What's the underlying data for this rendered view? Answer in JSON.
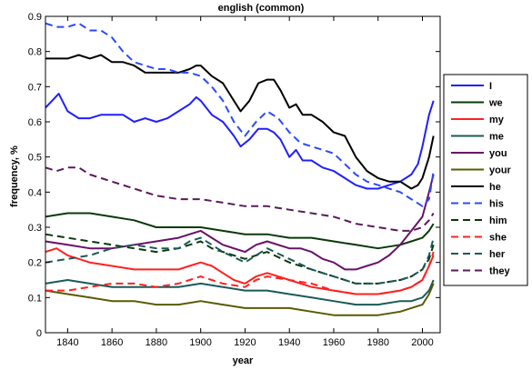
{
  "chart_data": {
    "type": "line",
    "title": "english (common)",
    "xlabel": "year",
    "ylabel": "frequency, %",
    "xlim": [
      1830,
      2008
    ],
    "ylim": [
      0,
      0.9
    ],
    "xticks": [
      1840,
      1860,
      1880,
      1900,
      1920,
      1940,
      1960,
      1980,
      2000
    ],
    "xtick_labels": [
      "1840",
      "1860",
      "1880",
      "1900",
      "1920",
      "1940",
      "1960",
      "1980",
      "2000"
    ],
    "yticks": [
      0,
      0.1,
      0.2,
      0.3,
      0.4,
      0.5,
      0.6,
      0.7,
      0.8,
      0.9
    ],
    "ytick_labels": [
      "0",
      "0.1",
      "0.2",
      "0.3",
      "0.4",
      "0.5",
      "0.6",
      "0.7",
      "0.8",
      "0.9"
    ],
    "grid": false,
    "legend_position": "right",
    "series": [
      {
        "name": "I",
        "color": "#1f1fff",
        "dash": "solid",
        "x": [
          1830,
          1833,
          1836,
          1840,
          1845,
          1850,
          1855,
          1860,
          1865,
          1870,
          1875,
          1880,
          1885,
          1890,
          1895,
          1898,
          1900,
          1905,
          1910,
          1915,
          1918,
          1922,
          1926,
          1930,
          1933,
          1936,
          1940,
          1943,
          1946,
          1950,
          1955,
          1960,
          1965,
          1970,
          1975,
          1980,
          1985,
          1990,
          1995,
          1998,
          2000,
          2003,
          2005
        ],
        "y": [
          0.64,
          0.66,
          0.68,
          0.63,
          0.61,
          0.61,
          0.62,
          0.62,
          0.62,
          0.6,
          0.61,
          0.6,
          0.61,
          0.63,
          0.65,
          0.67,
          0.66,
          0.62,
          0.6,
          0.56,
          0.53,
          0.55,
          0.58,
          0.58,
          0.57,
          0.55,
          0.5,
          0.52,
          0.49,
          0.49,
          0.47,
          0.46,
          0.44,
          0.42,
          0.41,
          0.41,
          0.42,
          0.43,
          0.45,
          0.48,
          0.53,
          0.62,
          0.66
        ]
      },
      {
        "name": "we",
        "color": "#0a3a0a",
        "dash": "solid",
        "x": [
          1830,
          1840,
          1850,
          1860,
          1870,
          1880,
          1890,
          1900,
          1910,
          1920,
          1930,
          1940,
          1950,
          1960,
          1970,
          1980,
          1990,
          1995,
          2000,
          2003,
          2005
        ],
        "y": [
          0.33,
          0.34,
          0.34,
          0.33,
          0.32,
          0.3,
          0.3,
          0.3,
          0.29,
          0.28,
          0.28,
          0.27,
          0.27,
          0.26,
          0.25,
          0.24,
          0.25,
          0.26,
          0.27,
          0.29,
          0.31
        ]
      },
      {
        "name": "my",
        "color": "#ff2020",
        "dash": "solid",
        "x": [
          1830,
          1835,
          1840,
          1850,
          1860,
          1870,
          1880,
          1890,
          1895,
          1900,
          1905,
          1910,
          1915,
          1920,
          1925,
          1930,
          1935,
          1940,
          1950,
          1960,
          1970,
          1980,
          1990,
          1995,
          2000,
          2003,
          2005
        ],
        "y": [
          0.23,
          0.24,
          0.22,
          0.2,
          0.19,
          0.18,
          0.18,
          0.18,
          0.19,
          0.2,
          0.19,
          0.17,
          0.15,
          0.14,
          0.16,
          0.17,
          0.16,
          0.15,
          0.13,
          0.12,
          0.11,
          0.11,
          0.12,
          0.13,
          0.15,
          0.19,
          0.22
        ]
      },
      {
        "name": "me",
        "color": "#1a5a5a",
        "dash": "solid",
        "x": [
          1830,
          1840,
          1850,
          1860,
          1870,
          1880,
          1890,
          1900,
          1910,
          1920,
          1930,
          1940,
          1950,
          1960,
          1970,
          1980,
          1990,
          1995,
          2000,
          2003,
          2005
        ],
        "y": [
          0.14,
          0.15,
          0.14,
          0.13,
          0.13,
          0.13,
          0.13,
          0.14,
          0.13,
          0.12,
          0.12,
          0.11,
          0.1,
          0.09,
          0.08,
          0.08,
          0.09,
          0.09,
          0.1,
          0.12,
          0.15
        ]
      },
      {
        "name": "you",
        "color": "#6a106a",
        "dash": "solid",
        "x": [
          1830,
          1840,
          1850,
          1860,
          1870,
          1880,
          1890,
          1895,
          1900,
          1905,
          1910,
          1920,
          1925,
          1930,
          1940,
          1945,
          1950,
          1955,
          1960,
          1965,
          1970,
          1975,
          1980,
          1985,
          1990,
          1995,
          2000,
          2003,
          2005
        ],
        "y": [
          0.26,
          0.25,
          0.24,
          0.24,
          0.25,
          0.26,
          0.27,
          0.28,
          0.29,
          0.27,
          0.25,
          0.23,
          0.25,
          0.26,
          0.24,
          0.24,
          0.23,
          0.21,
          0.2,
          0.18,
          0.18,
          0.19,
          0.2,
          0.22,
          0.25,
          0.29,
          0.33,
          0.4,
          0.45
        ]
      },
      {
        "name": "your",
        "color": "#5a5a00",
        "dash": "solid",
        "x": [
          1830,
          1840,
          1850,
          1860,
          1870,
          1880,
          1890,
          1900,
          1910,
          1920,
          1930,
          1940,
          1950,
          1960,
          1970,
          1980,
          1990,
          1995,
          2000,
          2003,
          2005
        ],
        "y": [
          0.12,
          0.11,
          0.1,
          0.09,
          0.09,
          0.08,
          0.08,
          0.09,
          0.08,
          0.07,
          0.07,
          0.07,
          0.06,
          0.05,
          0.05,
          0.05,
          0.06,
          0.07,
          0.08,
          0.11,
          0.14
        ]
      },
      {
        "name": "he",
        "color": "#000000",
        "dash": "solid",
        "x": [
          1830,
          1835,
          1840,
          1845,
          1850,
          1855,
          1860,
          1865,
          1870,
          1875,
          1880,
          1885,
          1890,
          1895,
          1898,
          1900,
          1905,
          1910,
          1915,
          1918,
          1922,
          1926,
          1930,
          1933,
          1936,
          1940,
          1943,
          1946,
          1950,
          1955,
          1960,
          1965,
          1970,
          1975,
          1980,
          1985,
          1990,
          1995,
          1998,
          2000,
          2003,
          2005
        ],
        "y": [
          0.78,
          0.78,
          0.78,
          0.79,
          0.78,
          0.79,
          0.77,
          0.77,
          0.76,
          0.74,
          0.74,
          0.74,
          0.74,
          0.75,
          0.76,
          0.76,
          0.73,
          0.71,
          0.66,
          0.63,
          0.66,
          0.71,
          0.72,
          0.72,
          0.69,
          0.64,
          0.65,
          0.62,
          0.62,
          0.6,
          0.57,
          0.56,
          0.5,
          0.46,
          0.44,
          0.43,
          0.43,
          0.41,
          0.42,
          0.44,
          0.5,
          0.56
        ]
      },
      {
        "name": "his",
        "color": "#2a4aff",
        "dash": "dashed",
        "x": [
          1830,
          1835,
          1840,
          1845,
          1850,
          1855,
          1860,
          1865,
          1870,
          1875,
          1880,
          1885,
          1890,
          1895,
          1900,
          1905,
          1910,
          1915,
          1920,
          1925,
          1930,
          1935,
          1940,
          1945,
          1950,
          1955,
          1960,
          1965,
          1970,
          1975,
          1980,
          1985,
          1990,
          1995,
          2000,
          2003,
          2005
        ],
        "y": [
          0.88,
          0.87,
          0.87,
          0.88,
          0.86,
          0.86,
          0.84,
          0.8,
          0.77,
          0.76,
          0.75,
          0.75,
          0.74,
          0.74,
          0.73,
          0.7,
          0.66,
          0.6,
          0.56,
          0.6,
          0.63,
          0.61,
          0.57,
          0.54,
          0.53,
          0.52,
          0.51,
          0.48,
          0.45,
          0.43,
          0.42,
          0.41,
          0.4,
          0.38,
          0.36,
          0.38,
          0.46
        ]
      },
      {
        "name": "him",
        "color": "#0a3a0a",
        "dash": "dashed",
        "x": [
          1830,
          1840,
          1850,
          1860,
          1870,
          1880,
          1890,
          1895,
          1900,
          1905,
          1910,
          1920,
          1925,
          1930,
          1940,
          1950,
          1960,
          1970,
          1980,
          1990,
          1995,
          2000,
          2003,
          2005
        ],
        "y": [
          0.28,
          0.27,
          0.26,
          0.25,
          0.24,
          0.23,
          0.24,
          0.25,
          0.26,
          0.24,
          0.23,
          0.21,
          0.22,
          0.23,
          0.2,
          0.18,
          0.16,
          0.14,
          0.14,
          0.15,
          0.16,
          0.18,
          0.21,
          0.25
        ]
      },
      {
        "name": "she",
        "color": "#ff2020",
        "dash": "dashed",
        "x": [
          1830,
          1840,
          1850,
          1860,
          1870,
          1880,
          1890,
          1895,
          1900,
          1905,
          1910,
          1920,
          1925,
          1930,
          1940,
          1950,
          1960,
          1970,
          1980,
          1990,
          1995,
          2000,
          2003,
          2005
        ],
        "y": [
          0.12,
          0.12,
          0.13,
          0.14,
          0.14,
          0.13,
          0.14,
          0.15,
          0.16,
          0.15,
          0.14,
          0.13,
          0.15,
          0.16,
          0.15,
          0.14,
          0.12,
          0.11,
          0.11,
          0.12,
          0.13,
          0.15,
          0.19,
          0.23
        ]
      },
      {
        "name": "her",
        "color": "#1a5a5a",
        "dash": "dashed",
        "x": [
          1830,
          1840,
          1850,
          1860,
          1870,
          1880,
          1890,
          1895,
          1900,
          1905,
          1910,
          1920,
          1925,
          1930,
          1940,
          1950,
          1960,
          1970,
          1980,
          1990,
          1995,
          2000,
          2003,
          2005
        ],
        "y": [
          0.2,
          0.21,
          0.22,
          0.24,
          0.25,
          0.24,
          0.24,
          0.26,
          0.27,
          0.25,
          0.23,
          0.2,
          0.22,
          0.24,
          0.21,
          0.18,
          0.16,
          0.14,
          0.14,
          0.15,
          0.16,
          0.18,
          0.22,
          0.27
        ]
      },
      {
        "name": "they",
        "color": "#5a1a5a",
        "dash": "dashed",
        "x": [
          1830,
          1835,
          1840,
          1845,
          1850,
          1860,
          1870,
          1880,
          1890,
          1900,
          1910,
          1920,
          1930,
          1940,
          1950,
          1960,
          1970,
          1980,
          1990,
          1995,
          2000,
          2003,
          2005
        ],
        "y": [
          0.47,
          0.46,
          0.47,
          0.47,
          0.45,
          0.43,
          0.41,
          0.39,
          0.38,
          0.38,
          0.37,
          0.36,
          0.36,
          0.35,
          0.34,
          0.33,
          0.31,
          0.3,
          0.29,
          0.29,
          0.3,
          0.32,
          0.34
        ]
      }
    ]
  }
}
